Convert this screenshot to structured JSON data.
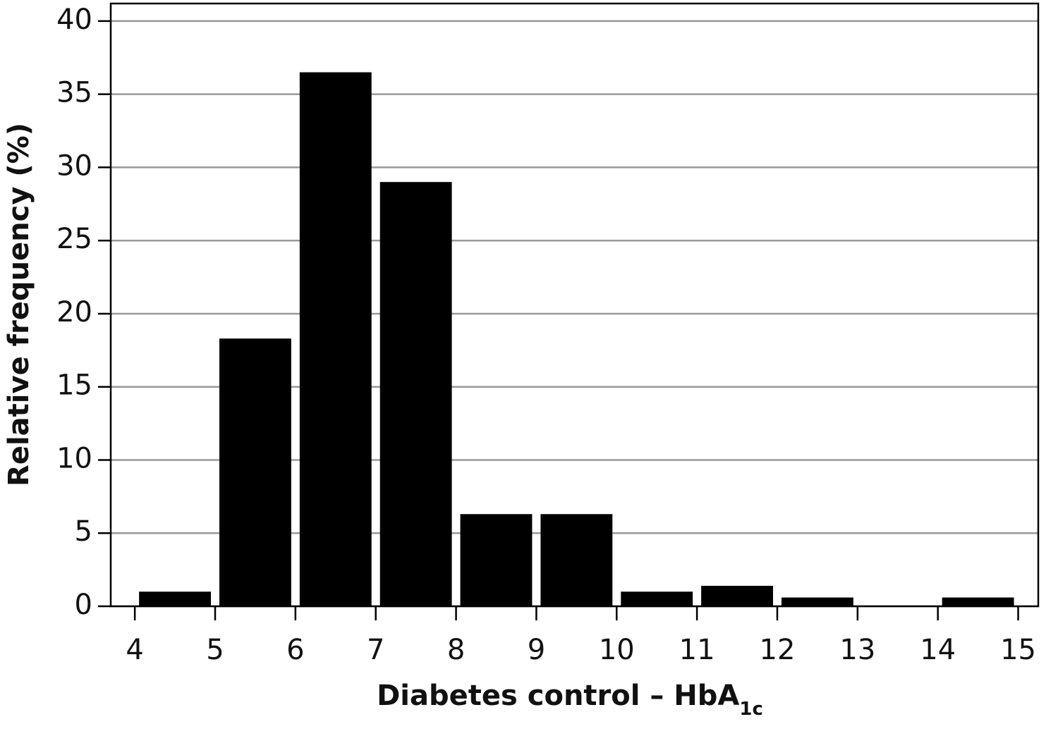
{
  "chart_data": {
    "type": "histogram",
    "xlabel": {
      "text": "Diabetes control – HbA",
      "subscript": "1c"
    },
    "ylabel": "Relative frequency (%)",
    "bins": [
      4,
      5,
      6,
      7,
      8,
      9,
      10,
      11,
      12,
      13,
      14,
      15
    ],
    "values": [
      1.0,
      18.3,
      36.5,
      29.0,
      6.3,
      6.3,
      1.0,
      1.4,
      0.6,
      0,
      0.6
    ],
    "color": "#000000",
    "xlim": [
      3.7,
      15.25
    ],
    "ylim": [
      0,
      41.2
    ],
    "xticks": [
      4,
      5,
      6,
      7,
      8,
      9,
      10,
      11,
      12,
      13,
      14,
      15
    ],
    "yticks": [
      0,
      5,
      10,
      15,
      20,
      25,
      30,
      35,
      40
    ],
    "grid": true
  }
}
